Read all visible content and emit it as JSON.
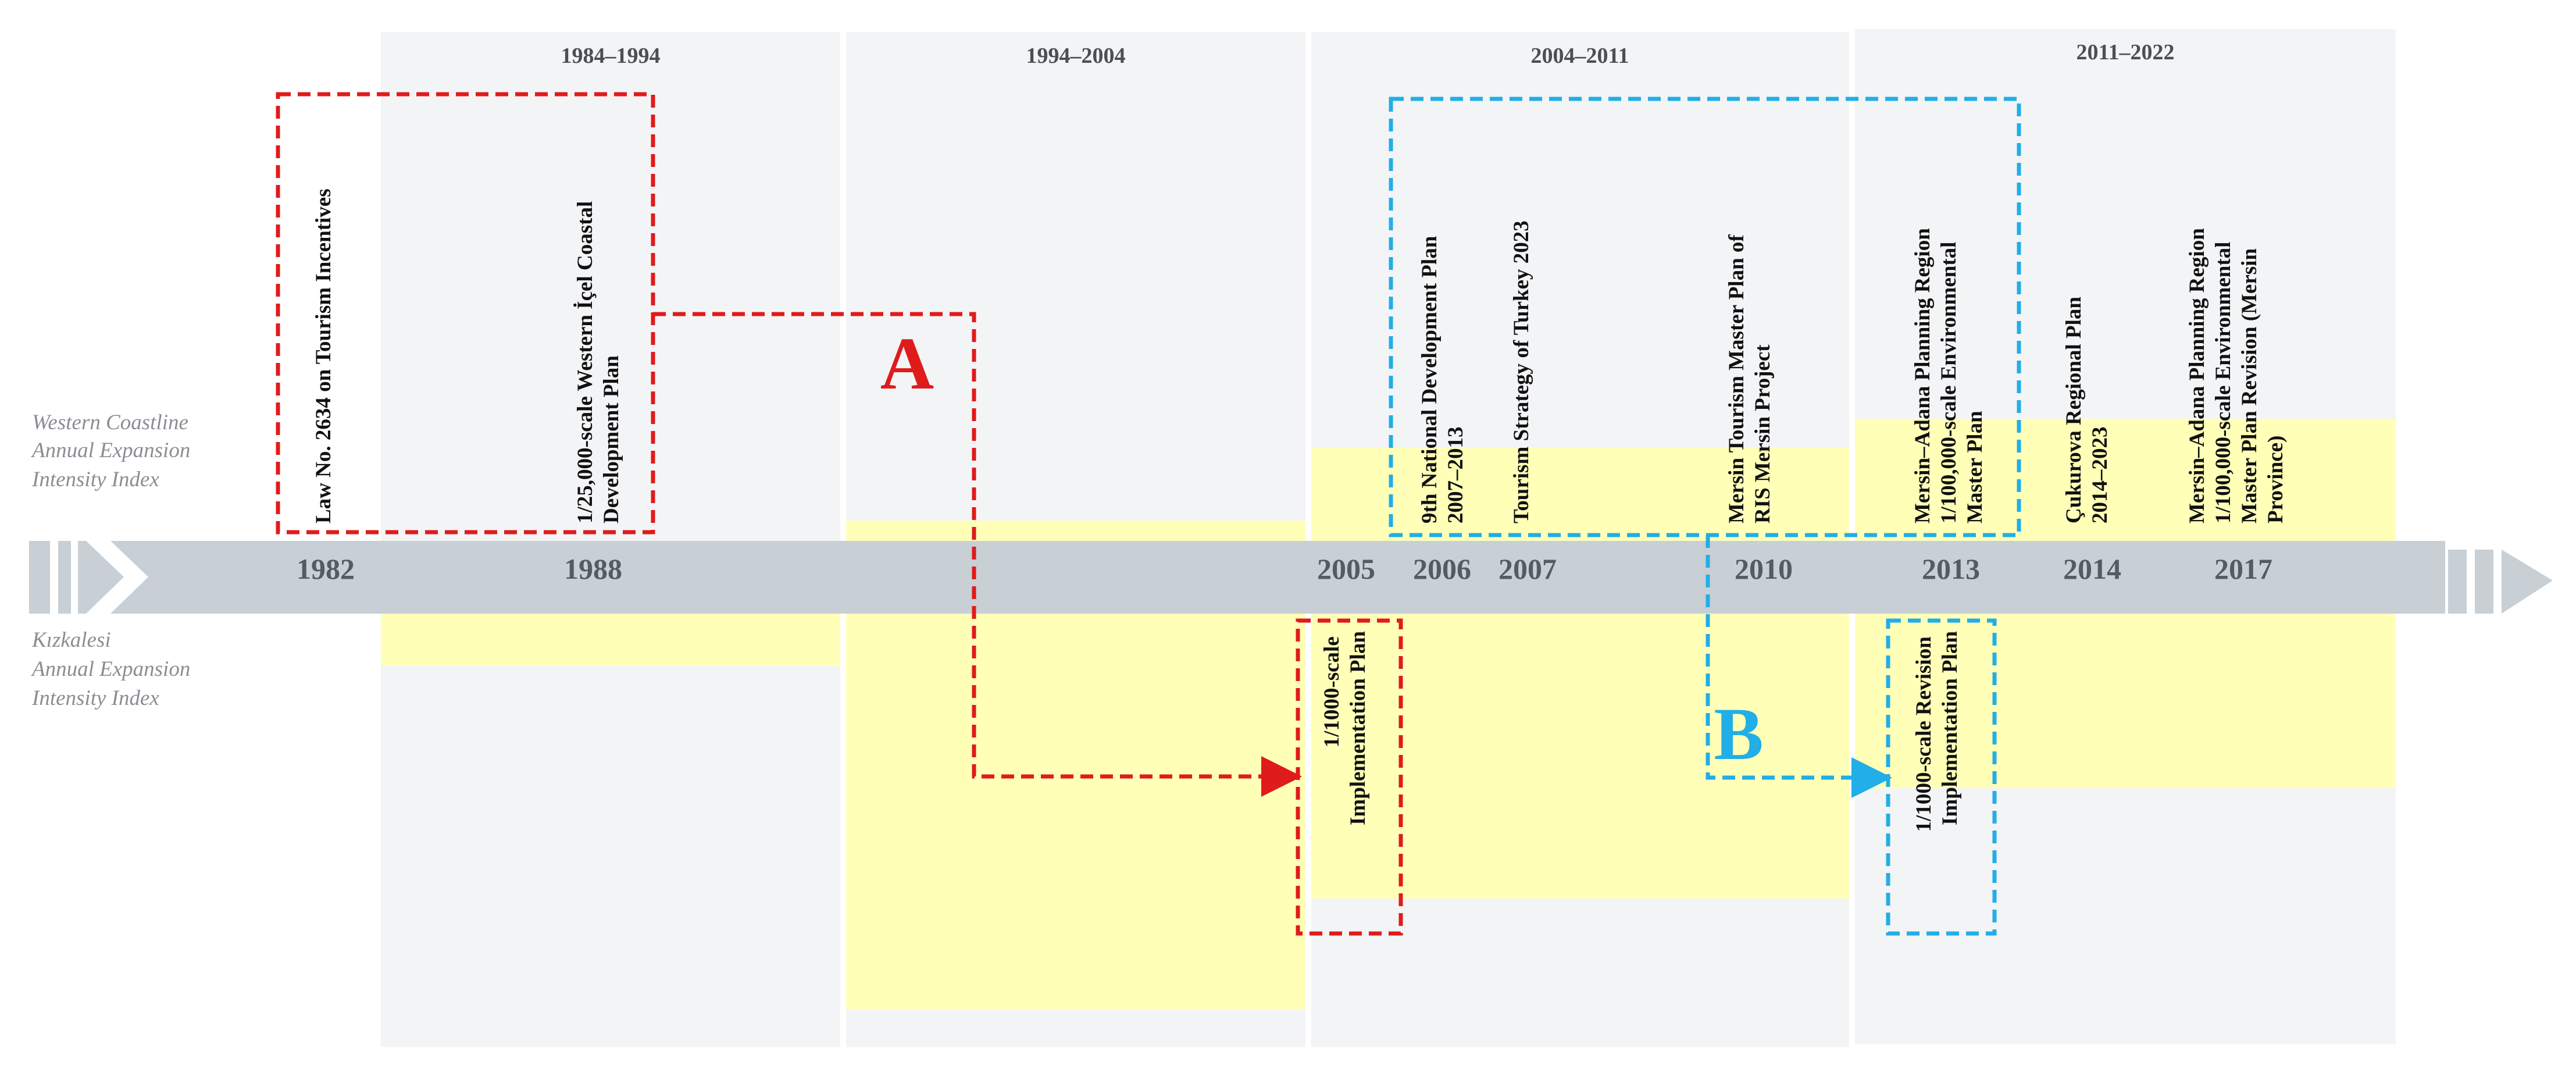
{
  "periods": [
    "1984–1994",
    "1994–2004",
    "2004–2011",
    "2011–2022"
  ],
  "index_labels": {
    "western": [
      "Western Coastline",
      "Annual Expansion",
      "Intensity Index"
    ],
    "kizkalesi": [
      "Kızkalesi",
      "Annual Expansion",
      "Intensity Index"
    ]
  },
  "years": [
    "1982",
    "1988",
    "2005",
    "2006",
    "2007",
    "2010",
    "2013",
    "2014",
    "2017"
  ],
  "plans_above": [
    [
      "Law No. 2634 on Tourism Incentives"
    ],
    [
      "1/25,000-scale Western İçel Coastal",
      "Development Plan"
    ],
    [
      "9th National Development Plan",
      "2007–2013"
    ],
    [
      "Tourism Strategy of Turkey 2023"
    ],
    [
      "Mersin Tourism Master Plan of",
      "RIS Mersin Project"
    ],
    [
      "Mersin–Adana Planning Region",
      "1/100,000-scale Environmental",
      "Master Plan"
    ],
    [
      "Çukurova Regional Plan",
      "2014–2023"
    ],
    [
      "Mersin–Adana Planning Region",
      "1/100,000-scale Environmental",
      "Master Plan Revision (Mersin",
      "Province)"
    ]
  ],
  "plans_below": [
    [
      "1/1000-scale",
      "Implementation Plan"
    ],
    [
      "1/1000-scale Revision",
      "Implementation Plan"
    ]
  ],
  "groups": [
    {
      "letter": "A",
      "color": "#e01b1b"
    },
    {
      "letter": "B",
      "color": "#22aee6"
    }
  ],
  "colors": {
    "period_bg": "#f3f4f6",
    "intensity_fill": "#ffffb8",
    "timeline": "#c8cfd5"
  }
}
